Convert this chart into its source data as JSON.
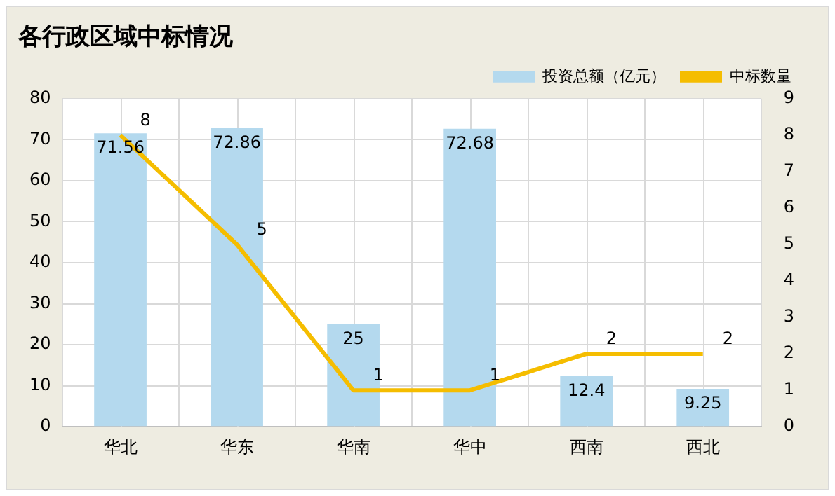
{
  "chart_data": {
    "type": "bar",
    "title": "各行政区域中标情况",
    "categories": [
      "华北",
      "华东",
      "华南",
      "华中",
      "西南",
      "西北"
    ],
    "series": [
      {
        "name": "投资总额（亿元）",
        "color": "#b4d9ee",
        "values": [
          71.56,
          72.86,
          25,
          72.68,
          12.4,
          9.25
        ]
      },
      {
        "name": "中标数量",
        "type": "line",
        "axis": "y2",
        "color": "#f5bd00",
        "values": [
          8,
          5,
          1,
          1,
          2,
          2
        ]
      }
    ],
    "ylim": [
      0,
      80
    ],
    "yticks": [
      0,
      10,
      20,
      30,
      40,
      50,
      60,
      70,
      80
    ],
    "y2lim": [
      0,
      9
    ],
    "y2ticks": [
      0,
      1,
      2,
      3,
      4,
      5,
      6,
      7,
      8,
      9
    ],
    "grid": true,
    "legend": "top right",
    "marker": "none",
    "data_labels": true
  }
}
